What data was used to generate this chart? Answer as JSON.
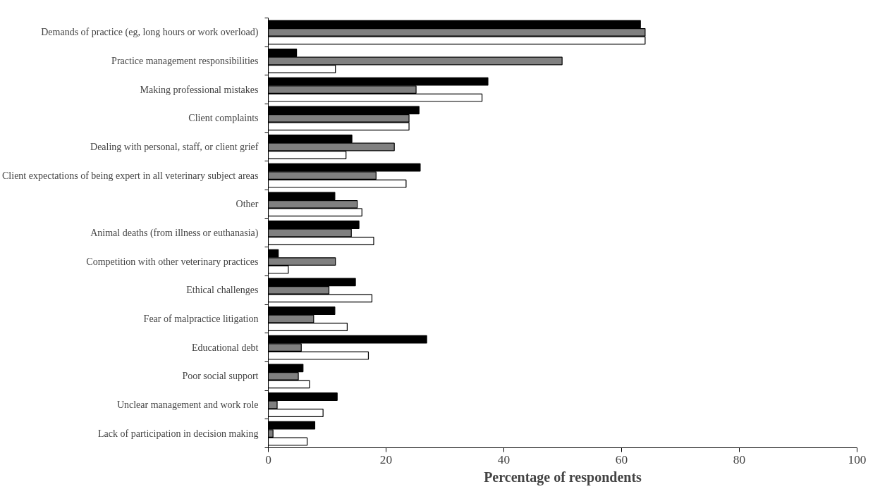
{
  "chart_data": {
    "type": "bar",
    "orientation": "horizontal",
    "xlabel": "Percentage of respondents",
    "categories": [
      "Demands of practice (eg, long hours or work overload)",
      "Practice management responsibilities",
      "Making professional mistakes",
      "Client complaints",
      "Dealing with personal, staff, or client grief",
      "Client expectations of being expert in all veterinary subject areas",
      "Other",
      "Animal deaths (from illness or euthanasia)",
      "Competition with other veterinary practices",
      "Ethical challenges",
      "Fear of malpractice litigation",
      "Educational debt",
      "Poor social support",
      "Unclear management and work role",
      "Lack of participation in decision making"
    ],
    "series": [
      {
        "color": "#000000",
        "values": [
          63.2,
          4.8,
          37.3,
          25.6,
          14.2,
          25.8,
          11.3,
          15.4,
          1.7,
          14.8,
          11.3,
          26.9,
          5.9,
          11.7,
          7.9
        ]
      },
      {
        "color": "#808080",
        "values": [
          64,
          49.9,
          25.1,
          23.9,
          21.4,
          18.3,
          15.1,
          14.1,
          11.4,
          10.3,
          7.7,
          5.6,
          5.1,
          1.5,
          0.8
        ]
      },
      {
        "color": "#ffffff",
        "values": [
          64,
          11.4,
          36.3,
          23.9,
          13.2,
          23.4,
          15.9,
          17.9,
          3.4,
          17.6,
          13.4,
          17.0,
          7.0,
          9.3,
          6.6
        ]
      }
    ],
    "xlim": [
      0,
      100
    ],
    "xticks": [
      0,
      20,
      40,
      60,
      80,
      100
    ],
    "grid": false
  }
}
